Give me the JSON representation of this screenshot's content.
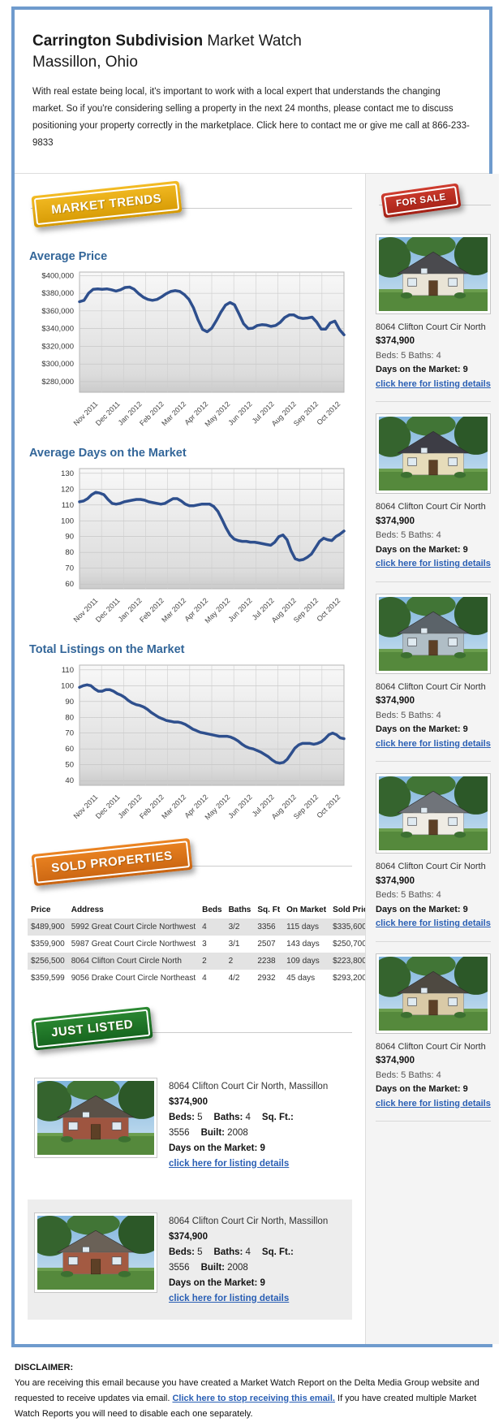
{
  "header": {
    "title_bold": "Carrington Subdivision",
    "title_rest": "Market Watch",
    "subtitle": "Massillon, Ohio",
    "intro": "With real estate being local, it's important to work with a local expert that understands the changing market. So if you're considering selling a property in the next 24 months, please contact me to discuss positioning your property correctly in the marketplace. Click here to contact me or give me call at 866-233-9833"
  },
  "badges": {
    "market_trends": "MARKET TRENDS",
    "for_sale": "FOR SALE",
    "sold_properties": "SOLD PROPERTIES",
    "just_listed": "JUST LISTED"
  },
  "colors": {
    "outer_border": "#6f9bcd",
    "heading_blue": "#336699",
    "link_blue": "#2a5fb4",
    "chart_line": "#2e4f8d",
    "badge_gold": "#e2a60f",
    "badge_red": "#bd2e22",
    "badge_orange": "#dd7519",
    "badge_green": "#1f7427"
  },
  "chart_data": [
    {
      "type": "line",
      "title": "Average Price",
      "x_labels": [
        "Nov 2011",
        "Dec 2011",
        "Jan 2012",
        "Feb 2012",
        "Mar 2012",
        "Apr 2012",
        "May 2012",
        "Jun 2012",
        "Jul 2012",
        "Aug 2012",
        "Sep 2012",
        "Oct 2012"
      ],
      "ylim": [
        268000,
        404000
      ],
      "yticks": [
        280000,
        300000,
        320000,
        340000,
        360000,
        380000,
        400000
      ],
      "ytick_labels": [
        "$280,000",
        "$300,000",
        "$320,000",
        "$340,000",
        "$360,000",
        "$380,000",
        "$400,000"
      ],
      "grid": true,
      "legend": "none",
      "values": [
        370500,
        372000,
        380000,
        384500,
        385000,
        384500,
        385000,
        384000,
        382500,
        384000,
        386500,
        387000,
        384500,
        379500,
        375500,
        373000,
        372000,
        373000,
        376000,
        379500,
        382000,
        383000,
        382000,
        378500,
        373000,
        363500,
        350000,
        339000,
        336500,
        340500,
        349000,
        358500,
        366500,
        369500,
        367000,
        356500,
        345500,
        340000,
        340500,
        343500,
        344500,
        344000,
        342500,
        343500,
        347000,
        352500,
        355500,
        355500,
        352500,
        351500,
        352000,
        353000,
        347500,
        339500,
        339500,
        346500,
        348500,
        339000,
        333000
      ]
    },
    {
      "type": "line",
      "title": "Average Days on the Market",
      "x_labels": [
        "Nov 2011",
        "Dec 2011",
        "Jan 2012",
        "Feb 2012",
        "Mar 2012",
        "Apr 2012",
        "May 2012",
        "Jun 2012",
        "Jul 2012",
        "Aug 2012",
        "Sep 2012",
        "Oct 2012"
      ],
      "ylim": [
        57,
        133
      ],
      "yticks": [
        60,
        70,
        80,
        90,
        100,
        110,
        120,
        130
      ],
      "ytick_labels": [
        "60",
        "70",
        "80",
        "90",
        "100",
        "110",
        "120",
        "130"
      ],
      "grid": true,
      "legend": "none",
      "values": [
        112,
        112.5,
        114,
        116.5,
        118,
        117.5,
        116.5,
        113.5,
        111,
        110.5,
        111,
        112,
        112.5,
        113,
        113.5,
        113.5,
        113,
        112,
        111.5,
        111,
        110.5,
        111,
        112.5,
        114,
        114,
        112.5,
        110.5,
        109.5,
        109.5,
        110,
        110.5,
        110.5,
        110.5,
        109,
        106,
        101,
        95.5,
        91,
        88.5,
        87.5,
        87,
        87,
        86.5,
        86.5,
        86,
        85.5,
        85,
        84.5,
        86.5,
        90,
        91,
        88,
        81,
        76,
        75,
        75.5,
        77,
        79,
        83,
        87,
        89,
        88,
        87.5,
        90,
        91.5,
        93.5
      ]
    },
    {
      "type": "line",
      "title": "Total Listings on the Market",
      "x_labels": [
        "Nov 2011",
        "Dec 2011",
        "Jan 2012",
        "Feb 2012",
        "Mar 2012",
        "Apr 2012",
        "May 2012",
        "Jun 2012",
        "Jul 2012",
        "Aug 2012",
        "Sep 2012",
        "Oct 2012"
      ],
      "ylim": [
        37,
        113
      ],
      "yticks": [
        40,
        50,
        60,
        70,
        80,
        90,
        100,
        110
      ],
      "ytick_labels": [
        "40",
        "50",
        "60",
        "70",
        "80",
        "90",
        "100",
        "110"
      ],
      "grid": true,
      "legend": "none",
      "values": [
        99,
        100,
        100.5,
        100,
        98,
        96.5,
        96.5,
        97.5,
        97.5,
        96.5,
        95,
        94,
        92.5,
        90.5,
        89,
        88,
        87.5,
        86.5,
        85,
        83,
        81.5,
        80,
        79,
        78,
        77.5,
        77,
        77,
        76.5,
        75.5,
        74,
        72.5,
        71.5,
        70.5,
        70,
        69.5,
        69,
        68.5,
        68,
        68,
        68,
        67.5,
        66.5,
        65,
        63,
        61.5,
        60.5,
        60,
        59,
        58,
        56.5,
        55,
        53,
        51.5,
        51,
        51.5,
        53.5,
        57,
        60.5,
        62.5,
        63.5,
        63.5,
        63.5,
        63,
        63.5,
        64.5,
        66.5,
        69,
        70,
        69,
        67,
        66.5
      ]
    }
  ],
  "for_sale_listings": [
    {
      "address": "8064 Clifton Court Cir North",
      "price": "$374,900",
      "beds_baths": "Beds: 5 Baths: 4",
      "dom": "Days on the Market: 9",
      "link": "click here for listing details",
      "photo": {
        "name": "house-photo",
        "body": "#e9e4d6",
        "roof": "#4a4a4e"
      }
    },
    {
      "address": "8064 Clifton Court Cir North",
      "price": "$374,900",
      "beds_baths": "Beds: 5 Baths: 4",
      "dom": "Days on the Market: 9",
      "link": "click here for listing details",
      "photo": {
        "name": "house-photo",
        "body": "#e6dcba",
        "roof": "#3d3d45"
      }
    },
    {
      "address": "8064 Clifton Court Cir North",
      "price": "$374,900",
      "beds_baths": "Beds: 5 Baths: 4",
      "dom": "Days on the Market: 9",
      "link": "click here for listing details",
      "photo": {
        "name": "house-photo",
        "body": "#b0bec6",
        "roof": "#5b6369"
      }
    },
    {
      "address": "8064 Clifton Court Cir North",
      "price": "$374,900",
      "beds_baths": "Beds: 5 Baths: 4",
      "dom": "Days on the Market: 9",
      "link": "click here for listing details",
      "photo": {
        "name": "house-photo",
        "body": "#efece4",
        "roof": "#70747a"
      }
    },
    {
      "address": "8064 Clifton Court Cir North",
      "price": "$374,900",
      "beds_baths": "Beds: 5 Baths: 4",
      "dom": "Days on the Market: 9",
      "link": "click here for listing details",
      "photo": {
        "name": "house-photo",
        "body": "#d9caa7",
        "roof": "#4e4941"
      }
    }
  ],
  "sold_table": {
    "headers": [
      "Price",
      "Address",
      "Beds",
      "Baths",
      "Sq. Ft",
      "On Market",
      "Sold Price"
    ],
    "rows": [
      [
        "$489,900",
        "5992 Great Court Circle Northwest",
        "4",
        "3/2",
        "3356",
        "115 days",
        "$335,600"
      ],
      [
        "$359,900",
        "5987 Great Court Circle Northwest",
        "3",
        "3/1",
        "2507",
        "143 days",
        "$250,700"
      ],
      [
        "$256,500",
        "8064 Clifton Court Circle North",
        "2",
        "2",
        "2238",
        "109 days",
        "$223,800"
      ],
      [
        "$359,599",
        "9056 Drake Court Circle Northeast",
        "4",
        "4/2",
        "2932",
        "45 days",
        "$293,200"
      ]
    ]
  },
  "just_listed_listings": [
    {
      "address": "8064 Clifton Court Cir North, Massillon",
      "price": "$374,900",
      "specs": [
        {
          "label": "Beds:",
          "value": "5"
        },
        {
          "label": "Baths:",
          "value": "4"
        },
        {
          "label": "Sq. Ft.:",
          "value": "3556"
        },
        {
          "label": "Built:",
          "value": "2008"
        }
      ],
      "dom": "Days on the Market: 9",
      "link": "click here for listing details",
      "photo": {
        "name": "house-photo",
        "body": "#9e5540",
        "roof": "#5a5148"
      }
    },
    {
      "address": "8064 Clifton Court Cir North, Massillon",
      "price": "$374,900",
      "specs": [
        {
          "label": "Beds:",
          "value": "5"
        },
        {
          "label": "Baths:",
          "value": "4"
        },
        {
          "label": "Sq. Ft.:",
          "value": "3556"
        },
        {
          "label": "Built:",
          "value": "2008"
        }
      ],
      "dom": "Days on the Market: 9",
      "link": "click here for listing details",
      "photo": {
        "name": "house-photo",
        "body": "#a35a42",
        "roof": "#6a6157"
      }
    }
  ],
  "disclaimer": {
    "heading": "DISCLAIMER:",
    "text_before": "You are receiving this email because you have created a Market Watch Report on the Delta Media Group website and requested to receive updates via email. ",
    "link": "Click here to stop receiving this email.",
    "text_after": " If you have created multiple Market Watch Reports you will need to disable each one separately."
  }
}
